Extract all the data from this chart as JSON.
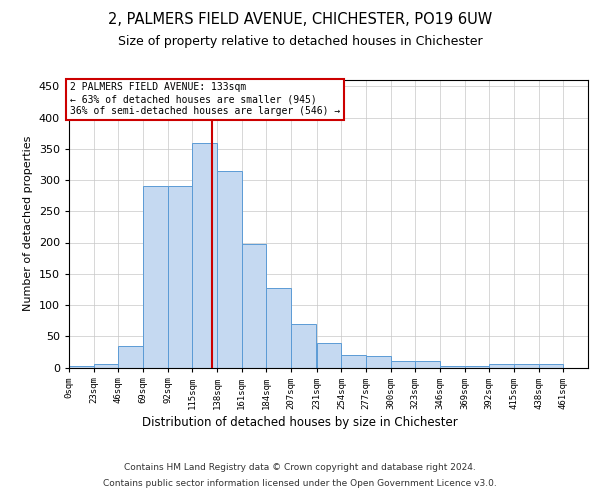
{
  "title": "2, PALMERS FIELD AVENUE, CHICHESTER, PO19 6UW",
  "subtitle": "Size of property relative to detached houses in Chichester",
  "xlabel": "Distribution of detached houses by size in Chichester",
  "ylabel": "Number of detached properties",
  "bar_color": "#c5d9f1",
  "bar_edge_color": "#5b9bd5",
  "background_color": "#ffffff",
  "grid_color": "#c8c8c8",
  "bins": [
    0,
    23,
    46,
    69,
    92,
    115,
    138,
    161,
    184,
    207,
    231,
    254,
    277,
    300,
    323,
    346,
    369,
    392,
    415,
    438,
    461,
    484
  ],
  "heights": [
    3,
    5,
    35,
    290,
    290,
    360,
    315,
    197,
    128,
    70,
    40,
    20,
    18,
    10,
    10,
    3,
    2,
    5,
    5,
    5,
    0
  ],
  "tick_labels": [
    "0sqm",
    "23sqm",
    "46sqm",
    "69sqm",
    "92sqm",
    "115sqm",
    "138sqm",
    "161sqm",
    "184sqm",
    "207sqm",
    "231sqm",
    "254sqm",
    "277sqm",
    "300sqm",
    "323sqm",
    "346sqm",
    "369sqm",
    "392sqm",
    "415sqm",
    "438sqm",
    "461sqm"
  ],
  "property_size": 133,
  "red_line_color": "#cc0000",
  "annotation_line1": "2 PALMERS FIELD AVENUE: 133sqm",
  "annotation_line2": "← 63% of detached houses are smaller (945)",
  "annotation_line3": "36% of semi-detached houses are larger (546) →",
  "annotation_box_color": "#ffffff",
  "annotation_box_edge": "#cc0000",
  "ylim_max": 460,
  "yticks": [
    0,
    50,
    100,
    150,
    200,
    250,
    300,
    350,
    400,
    450
  ],
  "footer_line1": "Contains HM Land Registry data © Crown copyright and database right 2024.",
  "footer_line2": "Contains public sector information licensed under the Open Government Licence v3.0."
}
